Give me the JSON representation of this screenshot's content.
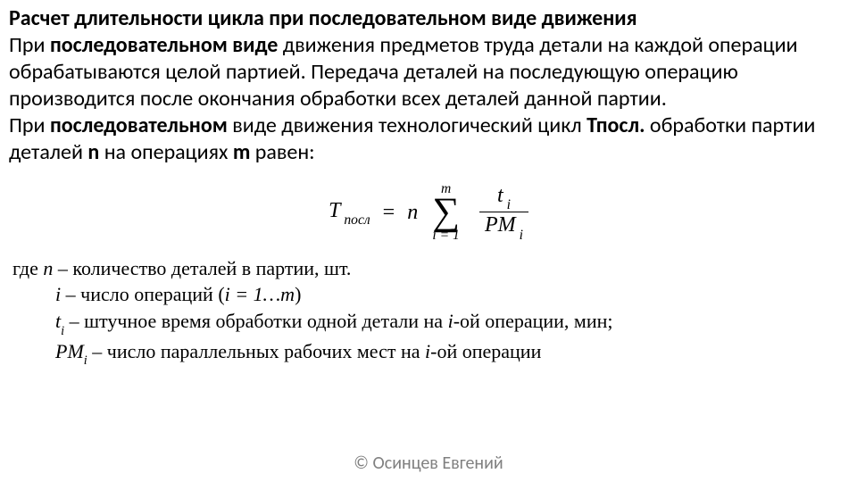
{
  "title": "Расчет длительности цикла при последовательном виде движения",
  "p1": {
    "a": "При ",
    "b": "последовательном виде",
    "c": " движения предметов труда детали на каждой операции обрабатываются целой партией. Передача деталей на последующую операцию производится после окончания обработки всех деталей данной партии."
  },
  "p2": {
    "a": "При ",
    "b": "последовательном",
    "c": " виде движения технологический цикл ",
    "d": "Тпосл.",
    "e": " обработки партии деталей ",
    "f": "n",
    "g": " на операциях ",
    "h": "m",
    "i": " равен:"
  },
  "formula": {
    "T": "T",
    "posl": " посл",
    "eq": " = ",
    "n": "n",
    "sum_top": "m",
    "sum_sigma": "∑",
    "sum_bot": "i = 1",
    "num_t": "t",
    "num_i": " i",
    "den_PM": "PM",
    "den_i": " i"
  },
  "defs": {
    "l1": {
      "a": "где ",
      "b": "n",
      "c": " – количество деталей в партии, шт."
    },
    "l2": {
      "a": "i",
      "b": " – число операций (",
      "c": "i = 1…m",
      "d": ")"
    },
    "l3": {
      "a": "t",
      "b": "i",
      "c": " – штучное время обработки одной детали на ",
      "d": "i",
      "e": "-ой операции, мин;"
    },
    "l4": {
      "a": "PM",
      "b": "i",
      "c": " – число параллельных рабочих мест на ",
      "d": "i",
      "e": "-ой операции"
    }
  },
  "footer": "© Осинцев Евгений"
}
